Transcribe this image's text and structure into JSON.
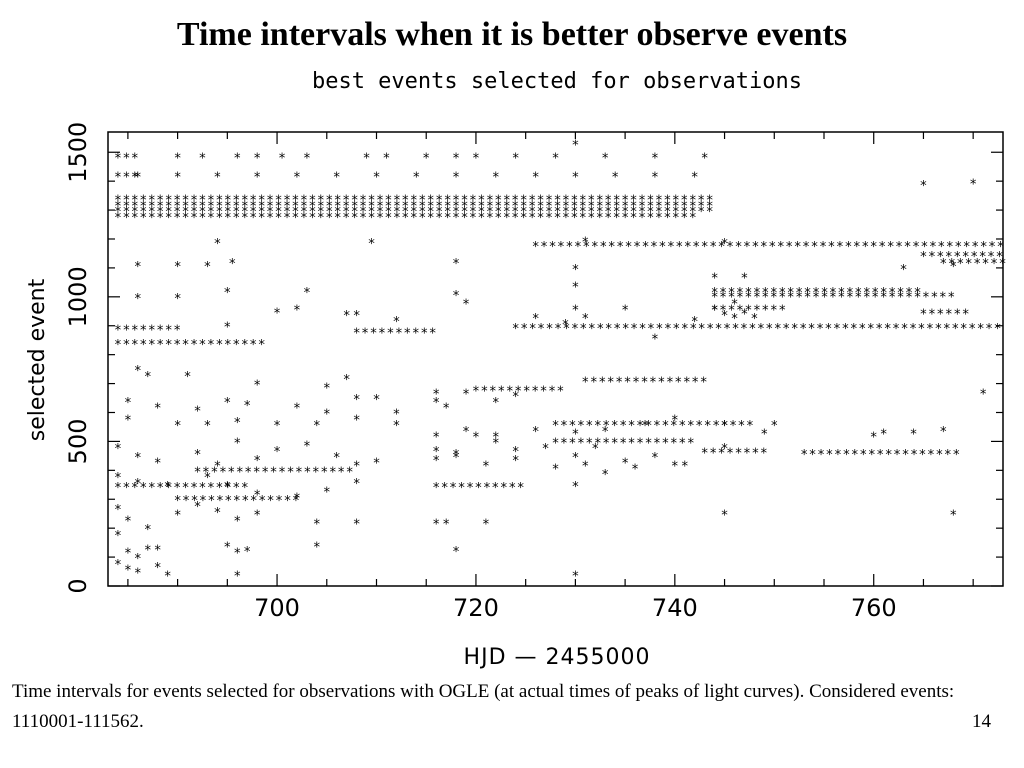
{
  "slide": {
    "title": "Time intervals when it is better observe events",
    "caption": "Time intervals for events selected for observations with OGLE (at actual times of peaks of light curves). Considered events: 1110001-111562.",
    "page_number": "14"
  },
  "chart_data": {
    "type": "scatter",
    "title": "best events selected for observations",
    "xlabel": "HJD — 2455000",
    "ylabel": "selected event",
    "xlim": [
      683,
      773
    ],
    "ylim": [
      0,
      1570
    ],
    "xticks": [
      700,
      720,
      740,
      760
    ],
    "yticks": [
      0,
      500,
      1000,
      1500
    ],
    "marker": "*",
    "grid": false,
    "rows": [
      {
        "y": 1485,
        "x_start": 684,
        "x_end": 686,
        "step": 0.85
      },
      {
        "y": 1420,
        "x_start": 684,
        "x_end": 686,
        "step": 0.85
      },
      {
        "y": 1340,
        "x_start": 684,
        "x_end": 743.5,
        "step": 0.85
      },
      {
        "y": 1320,
        "x_start": 684,
        "x_end": 743.5,
        "step": 0.85
      },
      {
        "y": 1300,
        "x_start": 684,
        "x_end": 743.5,
        "step": 0.85
      },
      {
        "y": 1280,
        "x_start": 684,
        "x_end": 742,
        "step": 0.85
      },
      {
        "y": 1180,
        "x_start": 726,
        "x_end": 773,
        "step": 0.85
      },
      {
        "y": 1145,
        "x_start": 765,
        "x_end": 773,
        "step": 0.85
      },
      {
        "y": 1120,
        "x_start": 767,
        "x_end": 773,
        "step": 0.85
      },
      {
        "y": 1020,
        "x_start": 744,
        "x_end": 765,
        "step": 0.85
      },
      {
        "y": 1005,
        "x_start": 744,
        "x_end": 768,
        "step": 0.85
      },
      {
        "y": 960,
        "x_start": 744,
        "x_end": 751,
        "step": 0.85
      },
      {
        "y": 945,
        "x_start": 765,
        "x_end": 770,
        "step": 0.85
      },
      {
        "y": 890,
        "x_start": 684,
        "x_end": 690,
        "step": 0.85
      },
      {
        "y": 880,
        "x_start": 708,
        "x_end": 716,
        "step": 0.85
      },
      {
        "y": 895,
        "x_start": 724,
        "x_end": 773,
        "step": 0.85
      },
      {
        "y": 840,
        "x_start": 684,
        "x_end": 699,
        "step": 0.85
      },
      {
        "y": 710,
        "x_start": 731,
        "x_end": 743,
        "step": 0.85
      },
      {
        "y": 680,
        "x_start": 720,
        "x_end": 729,
        "step": 0.85
      },
      {
        "y": 560,
        "x_start": 728,
        "x_end": 748,
        "step": 0.85
      },
      {
        "y": 500,
        "x_start": 728,
        "x_end": 742,
        "step": 0.85
      },
      {
        "y": 465,
        "x_start": 743,
        "x_end": 749,
        "step": 0.85
      },
      {
        "y": 460,
        "x_start": 753,
        "x_end": 769,
        "step": 0.85
      },
      {
        "y": 400,
        "x_start": 692,
        "x_end": 708,
        "step": 0.85
      },
      {
        "y": 345,
        "x_start": 684,
        "x_end": 697,
        "step": 0.85
      },
      {
        "y": 300,
        "x_start": 690,
        "x_end": 702,
        "step": 0.85
      },
      {
        "y": 345,
        "x_start": 716,
        "x_end": 725,
        "step": 0.85
      }
    ],
    "points": [
      [
        690,
        1485
      ],
      [
        692.5,
        1485
      ],
      [
        696,
        1485
      ],
      [
        698,
        1485
      ],
      [
        700.5,
        1485
      ],
      [
        703,
        1485
      ],
      [
        709,
        1485
      ],
      [
        711,
        1485
      ],
      [
        715,
        1485
      ],
      [
        718,
        1485
      ],
      [
        720,
        1485
      ],
      [
        724,
        1485
      ],
      [
        728,
        1485
      ],
      [
        733,
        1485
      ],
      [
        738,
        1485
      ],
      [
        743,
        1485
      ],
      [
        686,
        1420
      ],
      [
        690,
        1420
      ],
      [
        694,
        1420
      ],
      [
        698,
        1420
      ],
      [
        702,
        1420
      ],
      [
        706,
        1420
      ],
      [
        710,
        1420
      ],
      [
        714,
        1420
      ],
      [
        718,
        1420
      ],
      [
        722,
        1420
      ],
      [
        726,
        1420
      ],
      [
        730,
        1420
      ],
      [
        734,
        1420
      ],
      [
        738,
        1420
      ],
      [
        742,
        1420
      ],
      [
        730,
        1530
      ],
      [
        765,
        1390
      ],
      [
        770,
        1395
      ],
      [
        694,
        1190
      ],
      [
        695.5,
        1120
      ],
      [
        709.5,
        1190
      ],
      [
        731,
        1195
      ],
      [
        745,
        1190
      ],
      [
        718,
        1120
      ],
      [
        686,
        1110
      ],
      [
        690,
        1110
      ],
      [
        693,
        1110
      ],
      [
        695,
        1020
      ],
      [
        703,
        1020
      ],
      [
        718,
        1010
      ],
      [
        719,
        980
      ],
      [
        730,
        1100
      ],
      [
        730,
        1040
      ],
      [
        744,
        1070
      ],
      [
        747,
        1070
      ],
      [
        763,
        1100
      ],
      [
        768,
        1110
      ],
      [
        695,
        900
      ],
      [
        708,
        940
      ],
      [
        712,
        920
      ],
      [
        726,
        930
      ],
      [
        729,
        910
      ],
      [
        730,
        960
      ],
      [
        731,
        930
      ],
      [
        735,
        960
      ],
      [
        738,
        860
      ],
      [
        742,
        920
      ],
      [
        746,
        980
      ],
      [
        686,
        750
      ],
      [
        687,
        730
      ],
      [
        691,
        730
      ],
      [
        698,
        700
      ],
      [
        705,
        690
      ],
      [
        707,
        720
      ],
      [
        710,
        650
      ],
      [
        716,
        670
      ],
      [
        717,
        620
      ],
      [
        719,
        670
      ],
      [
        722,
        640
      ],
      [
        724,
        660
      ],
      [
        685,
        640
      ],
      [
        688,
        620
      ],
      [
        692,
        610
      ],
      [
        695,
        640
      ],
      [
        697,
        630
      ],
      [
        702,
        620
      ],
      [
        705,
        600
      ],
      [
        708,
        650
      ],
      [
        712,
        600
      ],
      [
        716,
        640
      ],
      [
        685,
        580
      ],
      [
        690,
        560
      ],
      [
        693,
        560
      ],
      [
        696,
        570
      ],
      [
        700,
        560
      ],
      [
        704,
        560
      ],
      [
        708,
        580
      ],
      [
        712,
        560
      ],
      [
        716,
        520
      ],
      [
        719,
        540
      ],
      [
        722,
        520
      ],
      [
        726,
        540
      ],
      [
        730,
        530
      ],
      [
        733,
        540
      ],
      [
        737,
        560
      ],
      [
        740,
        580
      ],
      [
        745,
        560
      ],
      [
        750,
        560
      ],
      [
        684,
        480
      ],
      [
        686,
        450
      ],
      [
        688,
        430
      ],
      [
        692,
        460
      ],
      [
        694,
        420
      ],
      [
        696,
        500
      ],
      [
        698,
        440
      ],
      [
        700,
        470
      ],
      [
        703,
        490
      ],
      [
        706,
        450
      ],
      [
        708,
        420
      ],
      [
        710,
        430
      ],
      [
        716,
        470
      ],
      [
        718,
        450
      ],
      [
        720,
        520
      ],
      [
        722,
        500
      ],
      [
        724,
        470
      ],
      [
        727,
        480
      ],
      [
        730,
        450
      ],
      [
        732,
        480
      ],
      [
        735,
        430
      ],
      [
        738,
        450
      ],
      [
        741,
        420
      ],
      [
        745,
        480
      ],
      [
        684,
        380
      ],
      [
        686,
        360
      ],
      [
        689,
        350
      ],
      [
        693,
        380
      ],
      [
        695,
        350
      ],
      [
        698,
        320
      ],
      [
        702,
        310
      ],
      [
        705,
        330
      ],
      [
        708,
        360
      ],
      [
        716,
        440
      ],
      [
        718,
        460
      ],
      [
        721,
        420
      ],
      [
        724,
        440
      ],
      [
        728,
        410
      ],
      [
        731,
        420
      ],
      [
        733,
        390
      ],
      [
        736,
        410
      ],
      [
        740,
        420
      ],
      [
        684,
        270
      ],
      [
        685,
        230
      ],
      [
        687,
        200
      ],
      [
        690,
        250
      ],
      [
        692,
        280
      ],
      [
        694,
        260
      ],
      [
        696,
        230
      ],
      [
        698,
        250
      ],
      [
        704,
        220
      ],
      [
        708,
        220
      ],
      [
        716,
        220
      ],
      [
        717,
        220
      ],
      [
        721,
        220
      ],
      [
        730,
        350
      ],
      [
        745,
        250
      ],
      [
        768,
        250
      ],
      [
        684,
        180
      ],
      [
        685,
        120
      ],
      [
        686,
        100
      ],
      [
        687,
        130
      ],
      [
        688,
        130
      ],
      [
        695,
        140
      ],
      [
        696,
        120
      ],
      [
        697,
        125
      ],
      [
        704,
        140
      ],
      [
        718,
        125
      ],
      [
        684,
        80
      ],
      [
        685,
        60
      ],
      [
        686,
        50
      ],
      [
        688,
        70
      ],
      [
        689,
        40
      ],
      [
        696,
        40
      ],
      [
        730,
        40
      ],
      [
        686,
        1000
      ],
      [
        690,
        1000
      ],
      [
        700,
        950
      ],
      [
        702,
        960
      ],
      [
        707,
        940
      ],
      [
        764,
        530
      ],
      [
        767,
        540
      ],
      [
        771,
        670
      ],
      [
        760,
        520
      ],
      [
        761,
        530
      ],
      [
        749,
        530
      ],
      [
        744,
        960
      ],
      [
        745,
        940
      ],
      [
        746,
        930
      ],
      [
        747,
        945
      ],
      [
        748,
        930
      ]
    ]
  }
}
